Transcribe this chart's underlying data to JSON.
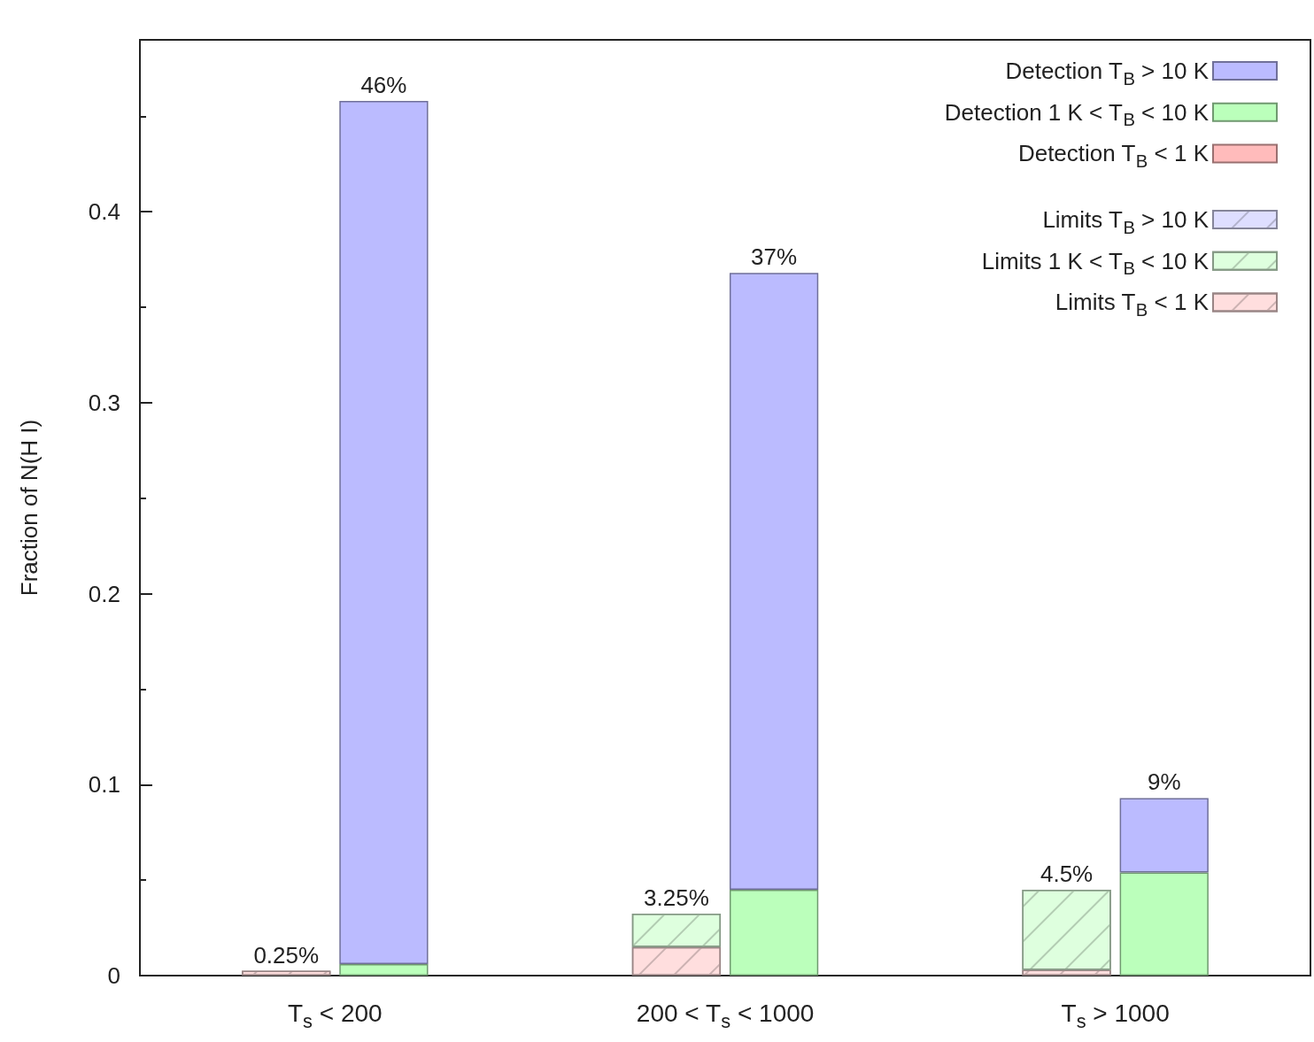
{
  "chart_data": {
    "type": "bar",
    "stacked": true,
    "ylabel": "Fraction of N(H I)",
    "categories": [
      null,
      "T$_{s}$ < 200",
      null,
      null,
      null,
      "200 < T$_{s}$ < 1000",
      null,
      null,
      null,
      "T$_{s}$ > 1000",
      null,
      null
    ],
    "series": [
      {
        "name": "Limits T$_{B}$ < 1 K",
        "color": "#ffdede",
        "values": [
          null,
          0.0025,
          null,
          null,
          null,
          0.015,
          null,
          null,
          null,
          0.003,
          null,
          null
        ]
      },
      {
        "name": "Limits 1 K < T$_{B}$ < 10 K",
        "color": "#deffde",
        "values": [
          null,
          0,
          null,
          null,
          null,
          0.0175,
          null,
          null,
          null,
          0.042,
          null,
          null
        ]
      },
      {
        "name": "Limits T$_{B}$ > 10 K",
        "color": "#dedeff",
        "values": [
          null,
          0,
          null,
          null,
          null,
          0,
          null,
          null,
          null,
          0,
          null,
          null
        ]
      },
      {
        "name": "Detection T$_{B}$ < 1 K",
        "color": "#ffbbbb",
        "values": [
          null,
          null,
          0,
          null,
          null,
          null,
          0,
          null,
          null,
          null,
          0,
          null
        ]
      },
      {
        "name": "Detection 1 K < T$_{B}$ < 10 K",
        "color": "#bbffbb",
        "values": [
          null,
          null,
          0.006,
          null,
          null,
          null,
          0.045,
          null,
          null,
          null,
          0.054,
          null
        ]
      },
      {
        "name": "Detection T$_{B}$ > 10 K",
        "color": "#bbbbff",
        "values": [
          null,
          null,
          0.452,
          null,
          null,
          null,
          0.323,
          null,
          null,
          null,
          0.039,
          null
        ]
      }
    ],
    "totals": [
      null,
      "0.25%",
      "46%",
      null,
      null,
      "3.25%",
      "37%",
      null,
      null,
      "4.5%",
      "9%",
      null
    ],
    "ylim": [
      0,
      0.49
    ],
    "yticks": [
      0,
      0.1,
      0.2,
      0.3,
      0.4
    ],
    "grid": false,
    "legend": "top right"
  }
}
